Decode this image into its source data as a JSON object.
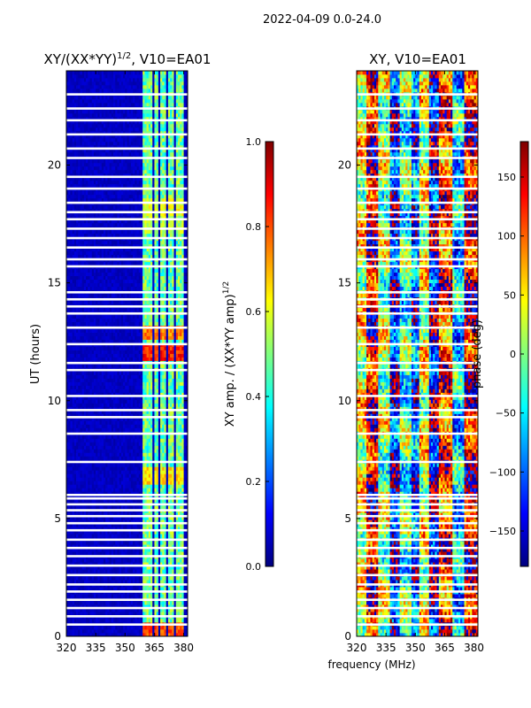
{
  "figure": {
    "suptitle": "2022-04-09 0.0-24.0",
    "xlabel_shared": "frequency (MHz)",
    "ylabel_shared": "UT (hours)"
  },
  "colors": {
    "jet": [
      "#00007f",
      "#0000ff",
      "#007fff",
      "#00ffff",
      "#7fff7f",
      "#ffff00",
      "#ff7f00",
      "#ff0000",
      "#7f0000"
    ],
    "gap": "#ffffff",
    "frame": "#000000"
  },
  "chart_data": [
    {
      "type": "heatmap",
      "panel": "left",
      "title_main": "XY/(XX*YY)",
      "title_exp": "1/2",
      "title_suffix": ", V10=EA01",
      "x": {
        "min": 320,
        "max": 382,
        "ticks": [
          320,
          335,
          350,
          365,
          380
        ]
      },
      "y": {
        "min": 0,
        "max": 24,
        "ticks": [
          0,
          5,
          10,
          15,
          20
        ]
      },
      "colorbar": {
        "label_main": "XY amp. / (XX*YY amp)",
        "label_exp": "1/2",
        "min": 0,
        "max": 1.0,
        "ticks": [
          0.0,
          0.2,
          0.4,
          0.6,
          0.8,
          1.0
        ],
        "tick_labels": [
          "0.0",
          "0.2",
          "0.4",
          "0.6",
          "0.8",
          "1.0"
        ]
      },
      "bright_channels": [
        {
          "f": 361.5,
          "w": 2.5
        },
        {
          "f": 366,
          "w": 1.5
        },
        {
          "f": 369.5,
          "w": 1.5
        },
        {
          "f": 373.5,
          "w": 2
        },
        {
          "f": 378,
          "w": 2
        }
      ],
      "hot_times": [
        {
          "t": 0.3,
          "v": 0.8
        },
        {
          "t": 6.8,
          "v": 0.65
        },
        {
          "t": 12.1,
          "v": 0.85
        },
        {
          "t": 12.9,
          "v": 0.75
        },
        {
          "t": 17.5,
          "v": 0.55
        },
        {
          "t": 18.2,
          "v": 0.6
        }
      ],
      "gaps_hours": [
        0.5,
        0.85,
        1.2,
        1.55,
        1.9,
        2.2,
        2.6,
        3.0,
        3.4,
        3.75,
        4.1,
        4.5,
        4.8,
        5.1,
        5.35,
        5.6,
        5.85,
        6.0,
        7.4,
        8.6,
        9.3,
        9.6,
        10.2,
        11.3,
        11.6,
        12.4,
        13.1,
        13.7,
        14.0,
        14.3,
        14.6,
        15.7,
        16.0,
        16.5,
        16.9,
        17.3,
        17.7,
        18.0,
        18.4,
        19.0,
        19.5,
        20.3,
        20.7,
        21.3,
        21.9,
        22.4,
        23.0
      ]
    },
    {
      "type": "heatmap",
      "panel": "right",
      "title": "XY, V10=EA01",
      "x": {
        "min": 320,
        "max": 382,
        "ticks": [
          320,
          335,
          350,
          365,
          380
        ]
      },
      "y": {
        "min": 0,
        "max": 24,
        "ticks": [
          0,
          5,
          10,
          15,
          20
        ]
      },
      "colorbar": {
        "label": "phase (deg)",
        "min": -180,
        "max": 180,
        "ticks": [
          -150,
          -100,
          -50,
          0,
          50,
          100,
          150
        ],
        "tick_labels": [
          "−150",
          "−100",
          "−50",
          "0",
          "50",
          "100",
          "150"
        ]
      },
      "bands": [
        {
          "f0": 320,
          "f1": 325,
          "phase": 40
        },
        {
          "f0": 325,
          "f1": 331,
          "phase": 150
        },
        {
          "f0": 331,
          "f1": 337,
          "phase": 10
        },
        {
          "f0": 337,
          "f1": 342,
          "phase": -130
        },
        {
          "f0": 342,
          "f1": 348,
          "phase": -20
        },
        {
          "f0": 348,
          "f1": 352,
          "phase": -110
        },
        {
          "f0": 352,
          "f1": 357,
          "phase": 30
        },
        {
          "f0": 357,
          "f1": 362,
          "phase": -150
        },
        {
          "f0": 362,
          "f1": 369,
          "phase": 110
        },
        {
          "f0": 369,
          "f1": 375,
          "phase": -60
        },
        {
          "f0": 375,
          "f1": 382,
          "phase": 150
        }
      ],
      "gaps_hours": [
        0.5,
        0.85,
        1.2,
        1.55,
        1.9,
        2.2,
        2.6,
        3.0,
        3.4,
        3.75,
        4.1,
        4.5,
        4.8,
        5.1,
        5.35,
        5.6,
        5.85,
        6.0,
        7.4,
        8.6,
        9.3,
        9.6,
        10.2,
        11.3,
        11.6,
        12.4,
        13.1,
        13.7,
        14.0,
        14.3,
        14.6,
        15.7,
        16.0,
        16.5,
        16.9,
        17.3,
        17.7,
        18.0,
        18.4,
        19.0,
        19.5,
        20.3,
        20.7,
        21.3,
        21.9,
        22.4,
        23.0
      ]
    }
  ]
}
